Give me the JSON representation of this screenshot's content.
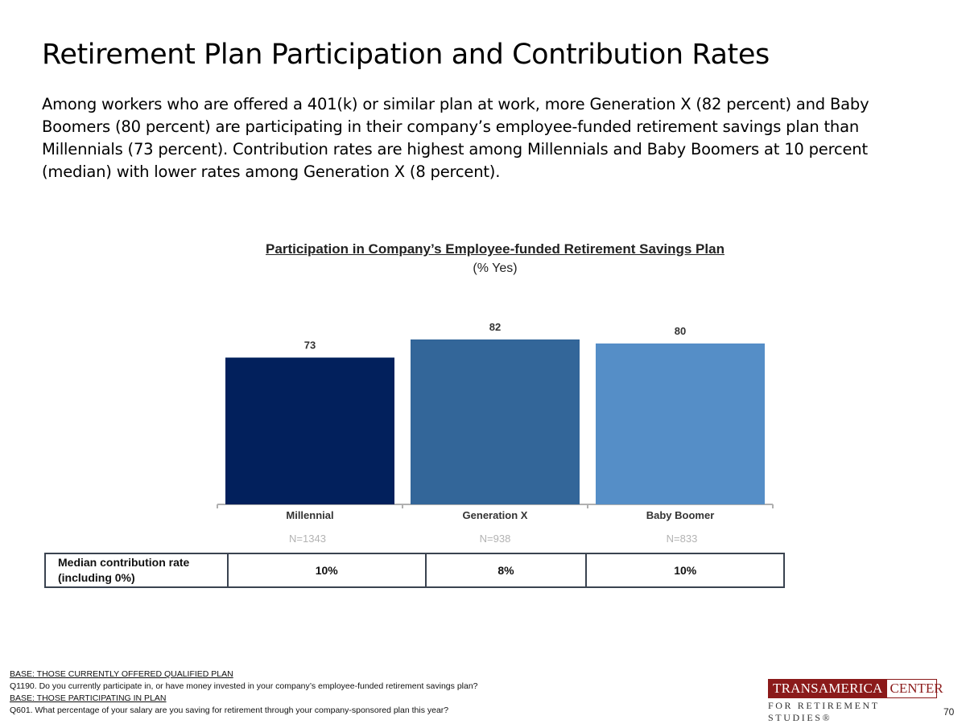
{
  "page": {
    "title": "Retirement Plan Participation and Contribution Rates",
    "intro": "Among workers who are offered a 401(k) or similar plan at work, more Generation X (82 percent) and Baby Boomers (80 percent) are participating in their company’s employee-funded retirement savings plan than Millennials (73 percent). Contribution rates are highest among Millennials and Baby Boomers at 10 percent (median) with lower rates among Generation X (8 percent).",
    "page_number": "70"
  },
  "chart_data": {
    "type": "bar",
    "title": "Participation in Company’s Employee-funded Retirement Savings Plan",
    "subtitle": "(% Yes)",
    "categories": [
      "Millennial",
      "Generation X",
      "Baby Boomer"
    ],
    "values": [
      73,
      82,
      80
    ],
    "data_labels": [
      "73",
      "82",
      "80"
    ],
    "sample_sizes": [
      "N=1343",
      "N=938",
      "N=833"
    ],
    "colors": [
      "#02205c",
      "#336699",
      "#558ec7"
    ],
    "ylim": [
      0,
      100
    ],
    "xlabel": "",
    "ylabel": "",
    "grid": false
  },
  "median_table": {
    "row_label": "Median contribution rate (including 0%)",
    "values": [
      "10%",
      "8%",
      "10%"
    ]
  },
  "footnotes": {
    "base1": "BASE: THOSE CURRENTLY OFFERED QUALIFIED PLAN",
    "q1": "Q1190. Do you currently participate in, or have money invested in your company’s employee-funded retirement savings plan?",
    "base2": "BASE: THOSE PARTICIPATING IN PLAN",
    "q2": "Q601. What percentage of your salary are you saving for retirement through your company-sponsored plan this year?"
  },
  "logo": {
    "brand": "TRANSAMERICA",
    "center": "CENTER",
    "tagline": "FOR RETIREMENT STUDIES®"
  }
}
